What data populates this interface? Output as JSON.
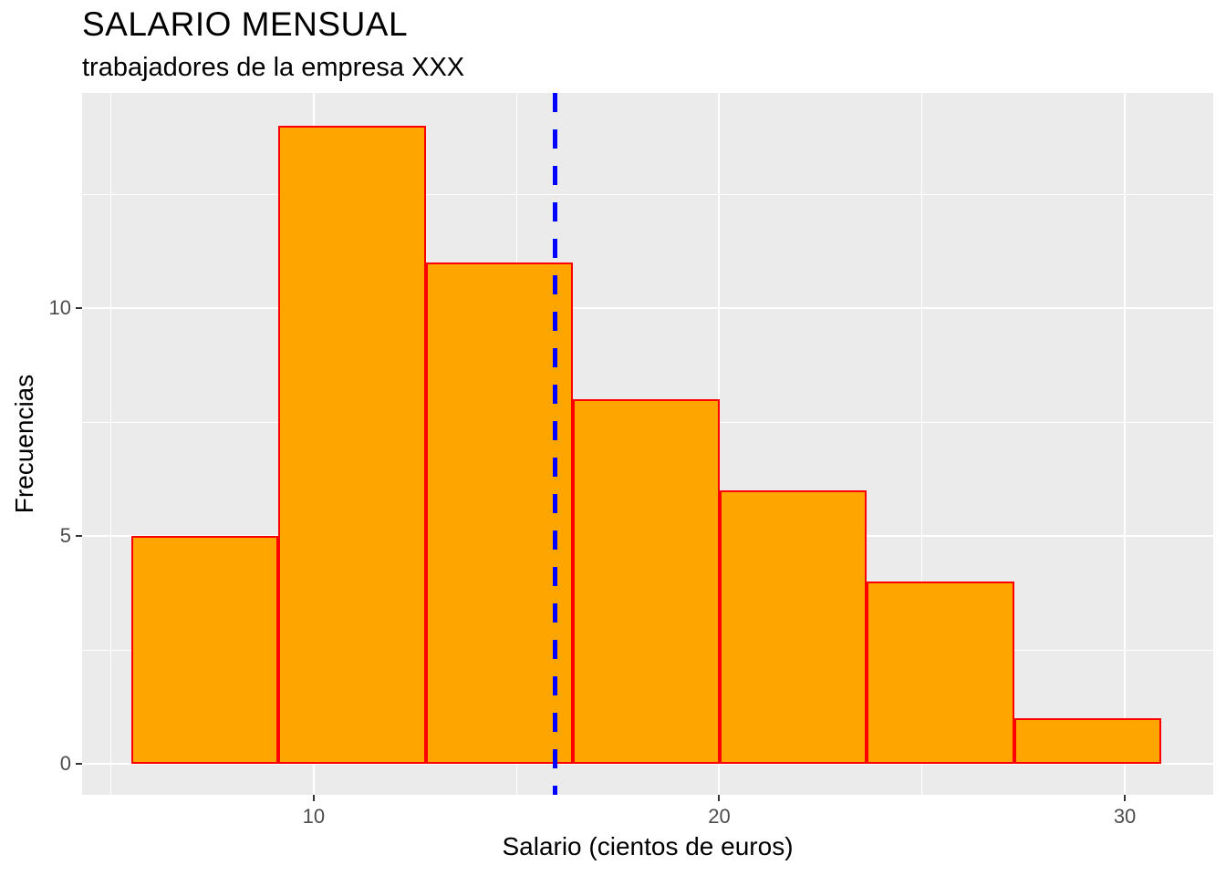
{
  "chart_data": {
    "type": "bar",
    "subtype": "histogram",
    "title": "SALARIO MENSUAL",
    "subtitle": "trabajadores de la empresa XXX",
    "xlabel": "Salario (cientos de euros)",
    "ylabel": "Frecuencias",
    "bin_edges": [
      5.5,
      9.13,
      12.76,
      16.39,
      20.01,
      23.64,
      27.27,
      30.9
    ],
    "counts": [
      5,
      14,
      11,
      8,
      6,
      4,
      1
    ],
    "x_ticks": [
      10,
      20,
      30
    ],
    "y_ticks": [
      0,
      5,
      10
    ],
    "x_minor_ticks": [
      5,
      15,
      25
    ],
    "y_minor_ticks": [
      2.5,
      7.5,
      12.5
    ],
    "xlim": [
      4.29,
      32.18
    ],
    "ylim": [
      -0.68,
      14.72
    ],
    "vline_x": 15.96,
    "vline_style": "dashed",
    "grid": "on",
    "legend_position": "none",
    "colors": {
      "bar_fill": "#FFA500",
      "bar_border": "#FF0000",
      "vline": "#0000FF",
      "panel_bg": "#EBEBEB",
      "grid": "#FFFFFF",
      "tick_text": "#4D4D4D",
      "title_text": "#000000"
    }
  }
}
